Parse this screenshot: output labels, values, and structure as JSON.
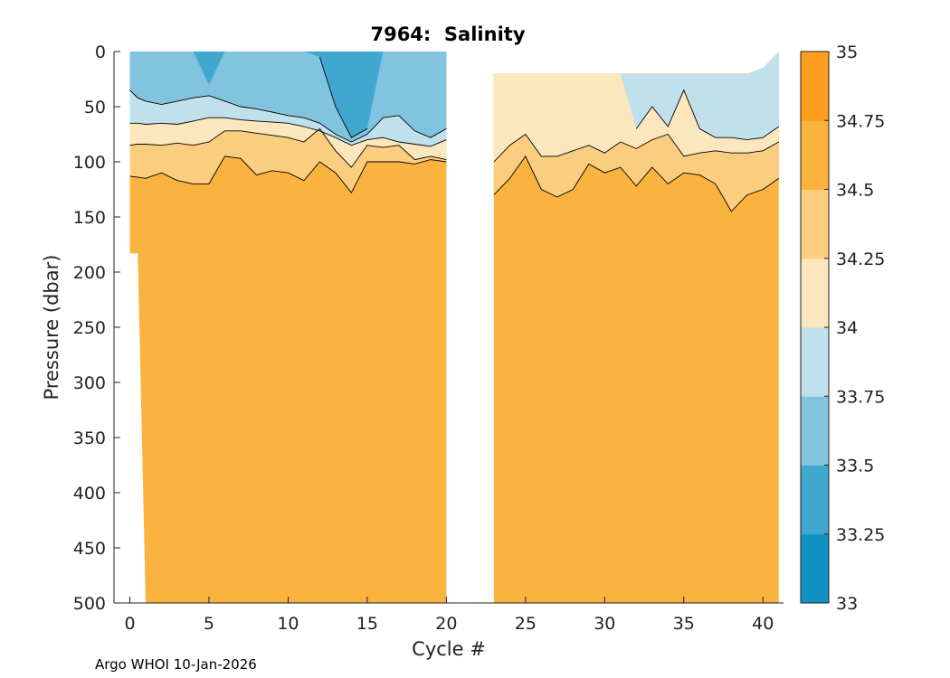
{
  "chart_data": {
    "type": "contourf",
    "title": "7964:  Salinity",
    "xlabel": "Cycle #",
    "ylabel": "Pressure (dbar)",
    "xlim": [
      -1,
      41.3
    ],
    "ylim": [
      500,
      0
    ],
    "x_ticks": [
      "0",
      "5",
      "10",
      "15",
      "20",
      "25",
      "30",
      "35",
      "40"
    ],
    "y_ticks": [
      "0",
      "50",
      "100",
      "150",
      "200",
      "250",
      "300",
      "350",
      "400",
      "450",
      "500"
    ],
    "colorbar": {
      "levels": [
        33,
        33.25,
        33.5,
        33.75,
        34,
        34.25,
        34.5,
        34.75,
        35
      ],
      "tick_labels": [
        "33",
        "33.25",
        "33.5",
        "33.75",
        "34",
        "34.25",
        "34.5",
        "34.75",
        "35"
      ],
      "colors": [
        "#1092c2",
        "#40a8cf",
        "#82c3e0",
        "#c0e0ec",
        "#fce6be",
        "#fbcd7e",
        "#fbb33f",
        "#fd9e1c"
      ]
    },
    "data_gaps_cycles": [
      [
        20,
        23
      ]
    ],
    "data_segments": [
      {
        "name": "cycles 0-20",
        "cycles": [
          0,
          0.5,
          1,
          2,
          3,
          4,
          5,
          6,
          7,
          8,
          9,
          10,
          11,
          12,
          13,
          14,
          15,
          16,
          17,
          18,
          19,
          20
        ],
        "top_pressure": [
          0,
          0,
          0,
          0,
          0,
          0,
          0,
          0,
          0,
          0,
          0,
          0,
          0,
          0,
          0,
          0,
          0,
          0,
          0,
          0,
          0,
          0
        ],
        "bottom_pressure": [
          183,
          183,
          500,
          500,
          500,
          500,
          500,
          500,
          500,
          500,
          500,
          500,
          500,
          500,
          500,
          500,
          500,
          500,
          500,
          500,
          500,
          500
        ],
        "isohaline_depths": [
          {
            "level": 33.5,
            "depth": [
              null,
              null,
              null,
              null,
              null,
              null,
              30,
              null,
              null,
              null,
              null,
              null,
              null,
              5,
              50,
              78,
              70,
              null,
              null,
              null,
              null,
              null
            ]
          },
          {
            "level": 33.75,
            "depth": [
              35,
              42,
              45,
              48,
              45,
              42,
              40,
              45,
              50,
              52,
              55,
              58,
              60,
              65,
              75,
              82,
              75,
              60,
              58,
              72,
              78,
              70
            ]
          },
          {
            "level": 34,
            "depth": [
              65,
              65,
              66,
              65,
              66,
              63,
              60,
              60,
              62,
              63,
              64,
              65,
              68,
              72,
              78,
              85,
              80,
              78,
              82,
              84,
              86,
              80
            ]
          },
          {
            "level": 34.25,
            "depth": [
              85,
              84,
              84,
              85,
              83,
              85,
              82,
              72,
              72,
              74,
              76,
              78,
              82,
              70,
              90,
              105,
              85,
              87,
              85,
              98,
              95,
              98
            ]
          },
          {
            "level": 34.5,
            "depth": [
              113,
              114,
              115,
              110,
              117,
              120,
              120,
              95,
              97,
              112,
              108,
              110,
              117,
              100,
              110,
              128,
              100,
              100,
              100,
              102,
              98,
              100
            ]
          }
        ]
      },
      {
        "name": "cycles 23-41",
        "cycles": [
          23,
          24,
          25,
          26,
          27,
          28,
          29,
          30,
          31,
          32,
          33,
          34,
          35,
          36,
          37,
          38,
          39,
          40,
          41
        ],
        "top_pressure": [
          20,
          20,
          20,
          20,
          20,
          20,
          20,
          20,
          20,
          20,
          20,
          20,
          20,
          20,
          20,
          20,
          20,
          15,
          0
        ],
        "bottom_pressure": [
          500,
          500,
          500,
          500,
          500,
          500,
          500,
          500,
          500,
          500,
          500,
          500,
          500,
          500,
          500,
          500,
          500,
          500,
          500
        ],
        "isohaline_depths": [
          {
            "level": 34,
            "depth": [
              null,
              null,
              null,
              20,
              20,
              20,
              20,
              20,
              20,
              70,
              50,
              68,
              35,
              70,
              78,
              78,
              80,
              78,
              68
            ]
          },
          {
            "level": 34.25,
            "depth": [
              100,
              85,
              75,
              95,
              95,
              90,
              85,
              92,
              82,
              88,
              80,
              75,
              95,
              92,
              90,
              92,
              92,
              90,
              82
            ]
          },
          {
            "level": 34.5,
            "depth": [
              130,
              115,
              95,
              125,
              132,
              125,
              102,
              110,
              105,
              122,
              105,
              120,
              110,
              112,
              120,
              145,
              130,
              125,
              115
            ]
          }
        ]
      }
    ]
  },
  "footer": "Argo WHOI 10-Jan-2026"
}
